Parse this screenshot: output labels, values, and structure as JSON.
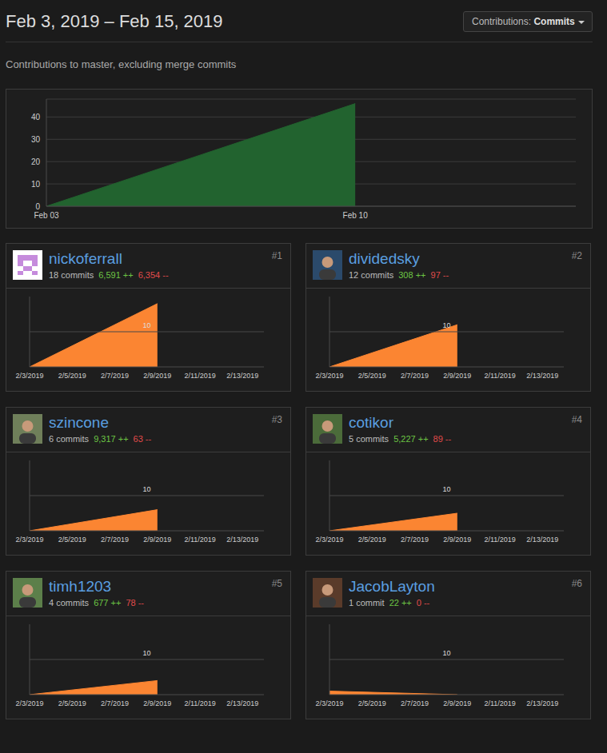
{
  "page": {
    "title": "Feb 3, 2019 – Feb 15, 2019",
    "dropdown": {
      "label": "Contributions:",
      "value": "Commits"
    },
    "subtitle": "Contributions to master, excluding merge commits"
  },
  "chart_data": [
    {
      "type": "area",
      "x": [
        3,
        10
      ],
      "values": [
        0,
        46
      ],
      "xlim": [
        3,
        15
      ],
      "xticks": [
        {
          "value": 3,
          "label": "Feb 03"
        },
        {
          "value": 10,
          "label": "Feb 10"
        }
      ],
      "ylim": [
        0,
        48
      ],
      "yticks": [
        0,
        10,
        20,
        30,
        40
      ],
      "color": "#22632f",
      "grid": true
    },
    {
      "type": "area",
      "title": "nickoferrall",
      "rank": "#1",
      "stats": [
        {
          "value": 18,
          "label": "18 commits"
        },
        {
          "value": 6591,
          "label": "6,591 ++"
        },
        {
          "value": 6354,
          "label": "6,354 --"
        }
      ],
      "x": [
        3,
        9
      ],
      "values": [
        0,
        18
      ],
      "xlim": [
        3,
        14
      ],
      "xticks": [
        {
          "value": 3,
          "label": "2/3/2019"
        },
        {
          "value": 5,
          "label": "2/5/2019"
        },
        {
          "value": 7,
          "label": "2/7/2019"
        },
        {
          "value": 9,
          "label": "2/9/2019"
        },
        {
          "value": 11,
          "label": "2/11/2019"
        },
        {
          "value": 13,
          "label": "2/13/2019"
        }
      ],
      "ylim": [
        0,
        20
      ],
      "yticks": [
        10
      ],
      "color": "#fb8532",
      "grid": true
    },
    {
      "type": "area",
      "title": "dividedsky",
      "rank": "#2",
      "stats": [
        {
          "value": 12,
          "label": "12 commits"
        },
        {
          "value": 308,
          "label": "308 ++"
        },
        {
          "value": 97,
          "label": "97 --"
        }
      ],
      "x": [
        3,
        9
      ],
      "values": [
        0,
        12
      ],
      "xlim": [
        3,
        14
      ],
      "xticks": [
        {
          "value": 3,
          "label": "2/3/2019"
        },
        {
          "value": 5,
          "label": "2/5/2019"
        },
        {
          "value": 7,
          "label": "2/7/2019"
        },
        {
          "value": 9,
          "label": "2/9/2019"
        },
        {
          "value": 11,
          "label": "2/11/2019"
        },
        {
          "value": 13,
          "label": "2/13/2019"
        }
      ],
      "ylim": [
        0,
        20
      ],
      "yticks": [
        10
      ],
      "color": "#fb8532",
      "grid": true
    },
    {
      "type": "area",
      "title": "szincone",
      "rank": "#3",
      "stats": [
        {
          "value": 6,
          "label": "6 commits"
        },
        {
          "value": 9317,
          "label": "9,317 ++"
        },
        {
          "value": 63,
          "label": "63 --"
        }
      ],
      "x": [
        3,
        9
      ],
      "values": [
        0,
        6
      ],
      "xlim": [
        3,
        14
      ],
      "xticks": [
        {
          "value": 3,
          "label": "2/3/2019"
        },
        {
          "value": 5,
          "label": "2/5/2019"
        },
        {
          "value": 7,
          "label": "2/7/2019"
        },
        {
          "value": 9,
          "label": "2/9/2019"
        },
        {
          "value": 11,
          "label": "2/11/2019"
        },
        {
          "value": 13,
          "label": "2/13/2019"
        }
      ],
      "ylim": [
        0,
        20
      ],
      "yticks": [
        10
      ],
      "color": "#fb8532",
      "grid": true
    },
    {
      "type": "area",
      "title": "cotikor",
      "rank": "#4",
      "stats": [
        {
          "value": 5,
          "label": "5 commits"
        },
        {
          "value": 5227,
          "label": "5,227 ++"
        },
        {
          "value": 89,
          "label": "89 --"
        }
      ],
      "x": [
        3,
        9
      ],
      "values": [
        0,
        5
      ],
      "xlim": [
        3,
        14
      ],
      "xticks": [
        {
          "value": 3,
          "label": "2/3/2019"
        },
        {
          "value": 5,
          "label": "2/5/2019"
        },
        {
          "value": 7,
          "label": "2/7/2019"
        },
        {
          "value": 9,
          "label": "2/9/2019"
        },
        {
          "value": 11,
          "label": "2/11/2019"
        },
        {
          "value": 13,
          "label": "2/13/2019"
        }
      ],
      "ylim": [
        0,
        20
      ],
      "yticks": [
        10
      ],
      "color": "#fb8532",
      "grid": true
    },
    {
      "type": "area",
      "title": "timh1203",
      "rank": "#5",
      "stats": [
        {
          "value": 4,
          "label": "4 commits"
        },
        {
          "value": 677,
          "label": "677 ++"
        },
        {
          "value": 78,
          "label": "78 --"
        }
      ],
      "x": [
        3,
        9
      ],
      "values": [
        0,
        4
      ],
      "xlim": [
        3,
        14
      ],
      "xticks": [
        {
          "value": 3,
          "label": "2/3/2019"
        },
        {
          "value": 5,
          "label": "2/5/2019"
        },
        {
          "value": 7,
          "label": "2/7/2019"
        },
        {
          "value": 9,
          "label": "2/9/2019"
        },
        {
          "value": 11,
          "label": "2/11/2019"
        },
        {
          "value": 13,
          "label": "2/13/2019"
        }
      ],
      "ylim": [
        0,
        20
      ],
      "yticks": [
        10
      ],
      "color": "#fb8532",
      "grid": true
    },
    {
      "type": "area",
      "title": "JacobLayton",
      "rank": "#6",
      "stats": [
        {
          "value": 1,
          "label": "1 commit"
        },
        {
          "value": 22,
          "label": "22 ++"
        },
        {
          "value": 0,
          "label": "0 --"
        }
      ],
      "x": [
        3,
        9
      ],
      "values": [
        1,
        0
      ],
      "xlim": [
        3,
        14
      ],
      "xticks": [
        {
          "value": 3,
          "label": "2/3/2019"
        },
        {
          "value": 5,
          "label": "2/5/2019"
        },
        {
          "value": 7,
          "label": "2/7/2019"
        },
        {
          "value": 9,
          "label": "2/9/2019"
        },
        {
          "value": 11,
          "label": "2/11/2019"
        },
        {
          "value": 13,
          "label": "2/13/2019"
        }
      ],
      "ylim": [
        0,
        20
      ],
      "yticks": [
        10
      ],
      "color": "#fb8532",
      "grid": true
    }
  ]
}
